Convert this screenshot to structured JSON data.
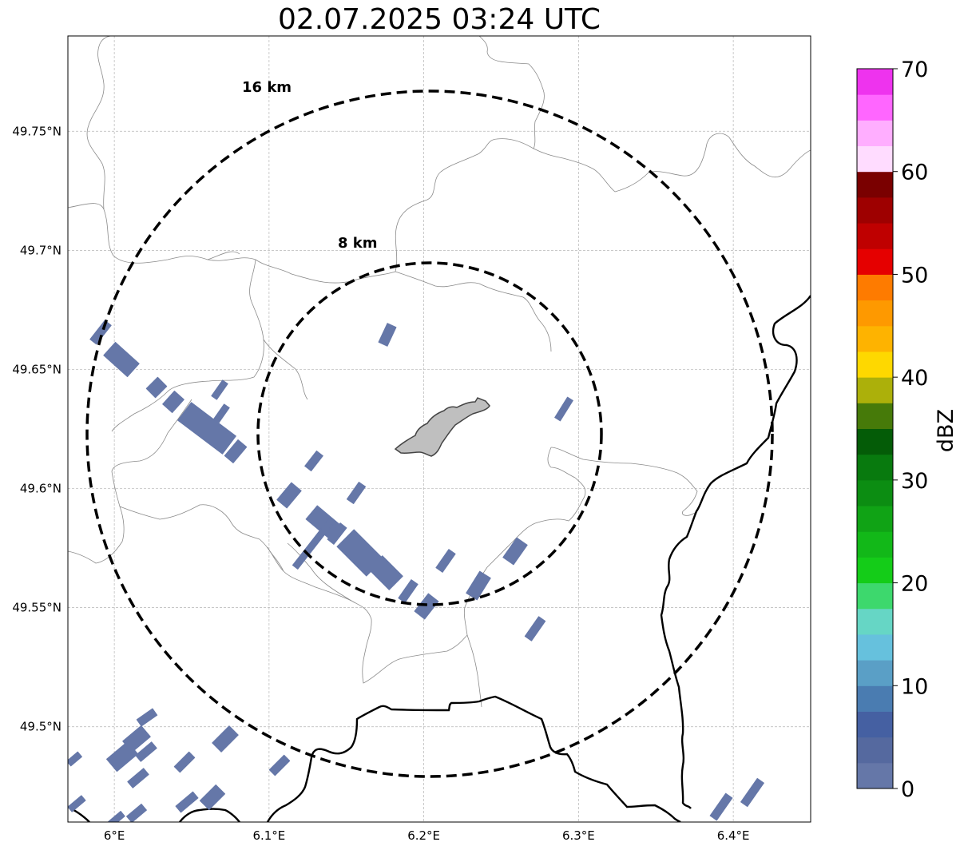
{
  "title": "02.07.2025 03:24 UTC",
  "map": {
    "extent": {
      "lon_min": 5.97,
      "lon_max": 6.45,
      "lat_min": 49.46,
      "lat_max": 49.79
    },
    "lon_ticks": [
      {
        "value": 6.0,
        "label": "6°E"
      },
      {
        "value": 6.1,
        "label": "6.1°E"
      },
      {
        "value": 6.2,
        "label": "6.2°E"
      },
      {
        "value": 6.3,
        "label": "6.3°E"
      },
      {
        "value": 6.4,
        "label": "6.4°E"
      }
    ],
    "lat_ticks": [
      {
        "value": 49.5,
        "label": "49.5°N"
      },
      {
        "value": 49.55,
        "label": "49.55°N"
      },
      {
        "value": 49.6,
        "label": "49.6°N"
      },
      {
        "value": 49.65,
        "label": "49.65°N"
      },
      {
        "value": 49.7,
        "label": "49.7°N"
      },
      {
        "value": 49.75,
        "label": "49.75°N"
      }
    ],
    "gridlines": true,
    "range_rings": [
      {
        "label": "8 km"
      },
      {
        "label": "16 km"
      }
    ]
  },
  "colorbar": {
    "label": "dBZ",
    "ticks": [
      "0",
      "10",
      "20",
      "30",
      "40",
      "50",
      "60",
      "70"
    ],
    "colors": [
      "#6577a8",
      "#55699f",
      "#4560a2",
      "#4a7cb1",
      "#5a9fc6",
      "#66c1dd",
      "#66d6c5",
      "#3dd86d",
      "#14cc18",
      "#12b818",
      "#10a315",
      "#0c8d12",
      "#087a0e",
      "#045c07",
      "#467a09",
      "#acb00a",
      "#fed800",
      "#feb300",
      "#fe9900",
      "#fe7b00",
      "#e50000",
      "#bf0000",
      "#9e0000",
      "#7a0000",
      "#ffdcff",
      "#ffaeff",
      "#ff66ff",
      "#ee33ee"
    ]
  }
}
